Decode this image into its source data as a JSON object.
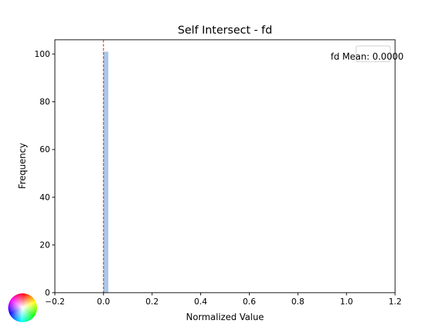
{
  "chart_data": {
    "type": "bar",
    "title": "Self Intersect - fd",
    "xlabel": "Normalized Value",
    "ylabel": "Frequency",
    "xlim": [
      -0.2,
      1.2
    ],
    "ylim": [
      0,
      106
    ],
    "x_ticks": [
      -0.2,
      0.0,
      0.2,
      0.4,
      0.6,
      0.8,
      1.0,
      1.2
    ],
    "x_tick_labels": [
      "−0.2",
      "0.0",
      "0.2",
      "0.4",
      "0.6",
      "0.8",
      "1.0",
      "1.2"
    ],
    "y_ticks": [
      0,
      20,
      40,
      60,
      80,
      100
    ],
    "y_tick_labels": [
      "0",
      "20",
      "40",
      "60",
      "80",
      "100"
    ],
    "bins": [
      {
        "x0": 0.0,
        "x1": 0.02,
        "value": 101
      }
    ],
    "mean_line": {
      "x": 0.0,
      "label": "fd Mean: 0.0000",
      "color": "#ff0000"
    },
    "bar_color": "#a8c8e8",
    "legend_position": "upper right",
    "grid": false
  }
}
